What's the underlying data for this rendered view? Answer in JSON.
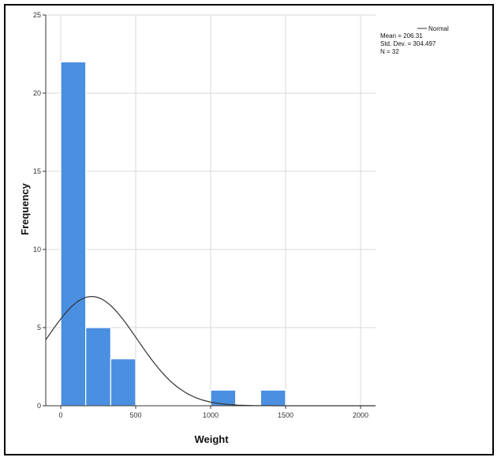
{
  "chart_data": {
    "type": "histogram",
    "xlabel": "Weight",
    "ylabel": "Frequency",
    "xlim": [
      -100,
      2100
    ],
    "ylim": [
      0,
      25
    ],
    "x_ticks": [
      0,
      500,
      1000,
      1500,
      2000
    ],
    "y_ticks": [
      0,
      5,
      10,
      15,
      20,
      25
    ],
    "grid": true,
    "bins": [
      {
        "x0": 0,
        "x1": 166.7,
        "count": 22
      },
      {
        "x0": 166.7,
        "x1": 333.3,
        "count": 5
      },
      {
        "x0": 333.3,
        "x1": 500,
        "count": 3
      },
      {
        "x0": 1000,
        "x1": 1166.7,
        "count": 1
      },
      {
        "x0": 1333.3,
        "x1": 1500,
        "count": 1
      }
    ],
    "bar_color": "#4a8fe0",
    "normal_curve": {
      "label": "Normal",
      "mean": 206.31,
      "std_dev": 304.497,
      "n": 32,
      "bin_width": 166.7,
      "color": "#333333"
    },
    "stats": {
      "mean_text": "Mean = 206.31",
      "std_text": "Std. Dev. = 304.497",
      "n_text": "N = 32"
    },
    "legend_position": "top-right"
  }
}
